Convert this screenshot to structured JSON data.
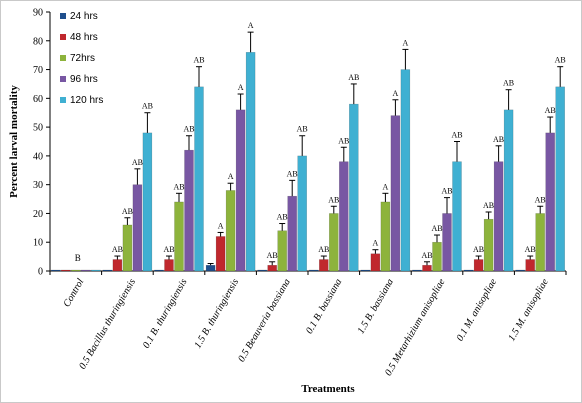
{
  "chart_data": {
    "type": "bar",
    "xlabel": "Treatments",
    "ylabel": "Percent larval mortality",
    "ylim": [
      0,
      90
    ],
    "ytick_step": 10,
    "grid": false,
    "legend_position": "top-left",
    "categories": [
      "Control",
      "0.5 Bacillus thuringiensis",
      "0.1 B. thuringiensis",
      "1.5 B. thuringiensis",
      "0.5 Beauveria bassiana",
      "0.1 B. bassiana",
      "1.5 B. bassiana",
      "0.5 Metarhizium anisopliae",
      "0.1 M. anisopliae",
      "1.5 M. anisopliae"
    ],
    "series": [
      {
        "name": "24 hrs",
        "color": "#1f4e8c",
        "values": [
          0,
          0,
          0,
          2,
          0,
          0,
          0,
          0,
          0,
          0
        ],
        "errors": [
          0,
          0,
          0,
          0.6,
          0,
          0,
          0,
          0,
          0,
          0
        ],
        "labels": [
          "",
          "",
          "",
          "",
          "",
          "",
          "",
          "",
          "",
          ""
        ]
      },
      {
        "name": "48 hrs",
        "color": "#c0282d",
        "values": [
          0,
          4,
          4,
          12,
          2,
          4,
          6,
          2,
          4,
          4
        ],
        "errors": [
          0,
          1.2,
          1.2,
          1.4,
          1.2,
          1.2,
          1.4,
          1.2,
          1.2,
          1.2
        ],
        "labels": [
          "",
          "AB",
          "AB",
          "A",
          "AB",
          "AB",
          "A",
          "AB",
          "AB",
          "AB"
        ]
      },
      {
        "name": "72hrs",
        "color": "#8db33c",
        "values": [
          0,
          16,
          24,
          28,
          14,
          20,
          24,
          10,
          18,
          20
        ],
        "errors": [
          0,
          2.5,
          3,
          2.5,
          2.5,
          2.5,
          3,
          2.5,
          2.5,
          2.5
        ],
        "labels": [
          "",
          "AB",
          "AB",
          "A",
          "AB",
          "AB",
          "A",
          "AB",
          "AB",
          "AB"
        ]
      },
      {
        "name": "96 hrs",
        "color": "#7857a3",
        "values": [
          0,
          30,
          42,
          56,
          26,
          38,
          54,
          20,
          38,
          48
        ],
        "errors": [
          0,
          5.5,
          5,
          5.5,
          5.5,
          5,
          5.5,
          5.5,
          5.5,
          5.5
        ],
        "labels": [
          "",
          "AB",
          "AB",
          "A",
          "AB",
          "AB",
          "A",
          "AB",
          "AB",
          "AB"
        ]
      },
      {
        "name": "120 hrs",
        "color": "#3fb0d2",
        "values": [
          0,
          48,
          64,
          76,
          40,
          58,
          70,
          38,
          56,
          64
        ],
        "errors": [
          0,
          7,
          7,
          7,
          7,
          7,
          7,
          7,
          7,
          7
        ],
        "labels": [
          "",
          "AB",
          "AB",
          "A",
          "AB",
          "AB",
          "A",
          "AB",
          "AB",
          "AB"
        ]
      }
    ],
    "annotations": [
      {
        "category": "Control",
        "text": "B"
      }
    ]
  }
}
